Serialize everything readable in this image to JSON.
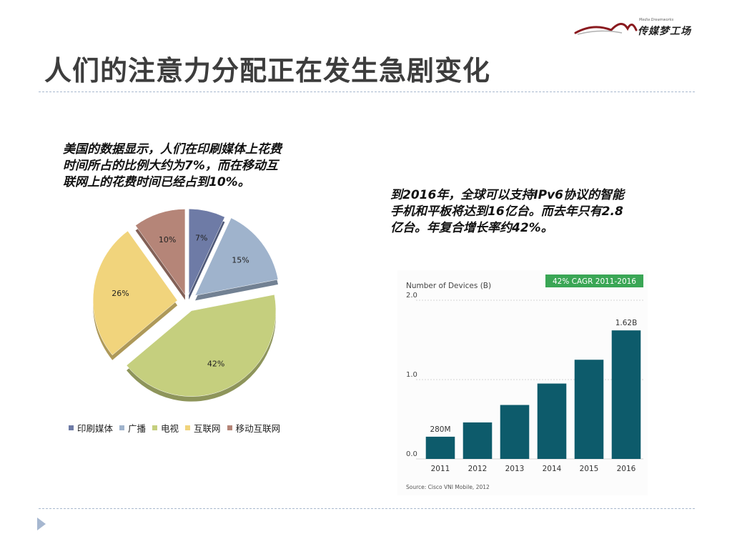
{
  "logo": {
    "text": "传媒梦工场",
    "sub": "Media Dreamworks",
    "accent": "#8a1a1f"
  },
  "page_title": "人们的注意力分配正在发生急剧变化",
  "left_note": [
    "美国的数据显示，人们在印刷媒体上花费",
    "时间所占的比例大约为7%，而在移动互",
    "联网上的花费时间已经占到10%。"
  ],
  "right_note": [
    "到2016年，全球可以支持IPv6协议的智能",
    "手机和平板将达到16亿台。而去年只有2.8",
    "亿台。年复合增长率约42%。"
  ],
  "colors": {
    "rule": "#a9b9cf",
    "arrow": "#a6b7d0",
    "title": "#3d3d3d",
    "bar": "#0d5b6b",
    "badge": "#3aa655"
  },
  "chart_data": [
    {
      "type": "pie",
      "title": "",
      "slices": [
        {
          "name": "印刷媒体",
          "value": 7,
          "label": "7%",
          "color": "#6e7ba6"
        },
        {
          "name": "广播",
          "value": 15,
          "label": "15%",
          "color": "#9fb3cc"
        },
        {
          "name": "电视",
          "value": 42,
          "label": "42%",
          "color": "#c5cf7e"
        },
        {
          "name": "互联网",
          "value": 26,
          "label": "26%",
          "color": "#f1d47c"
        },
        {
          "name": "移动互联网",
          "value": 10,
          "label": "10%",
          "color": "#b58578"
        }
      ],
      "legend_position": "bottom"
    },
    {
      "type": "bar",
      "title": "Number of Devices (B)",
      "badge": "42% CAGR 2011-2016",
      "categories": [
        "2011",
        "2012",
        "2013",
        "2014",
        "2015",
        "2016"
      ],
      "values": [
        0.28,
        0.46,
        0.68,
        0.95,
        1.25,
        1.62
      ],
      "data_labels": [
        "280M",
        "",
        "",
        "",
        "",
        "1.62B"
      ],
      "ylim": [
        0,
        2.0
      ],
      "yticks": [
        "0.0",
        "1.0",
        "2.0"
      ],
      "grid": true,
      "source": "Source: Cisco VNI Mobile, 2012"
    }
  ]
}
